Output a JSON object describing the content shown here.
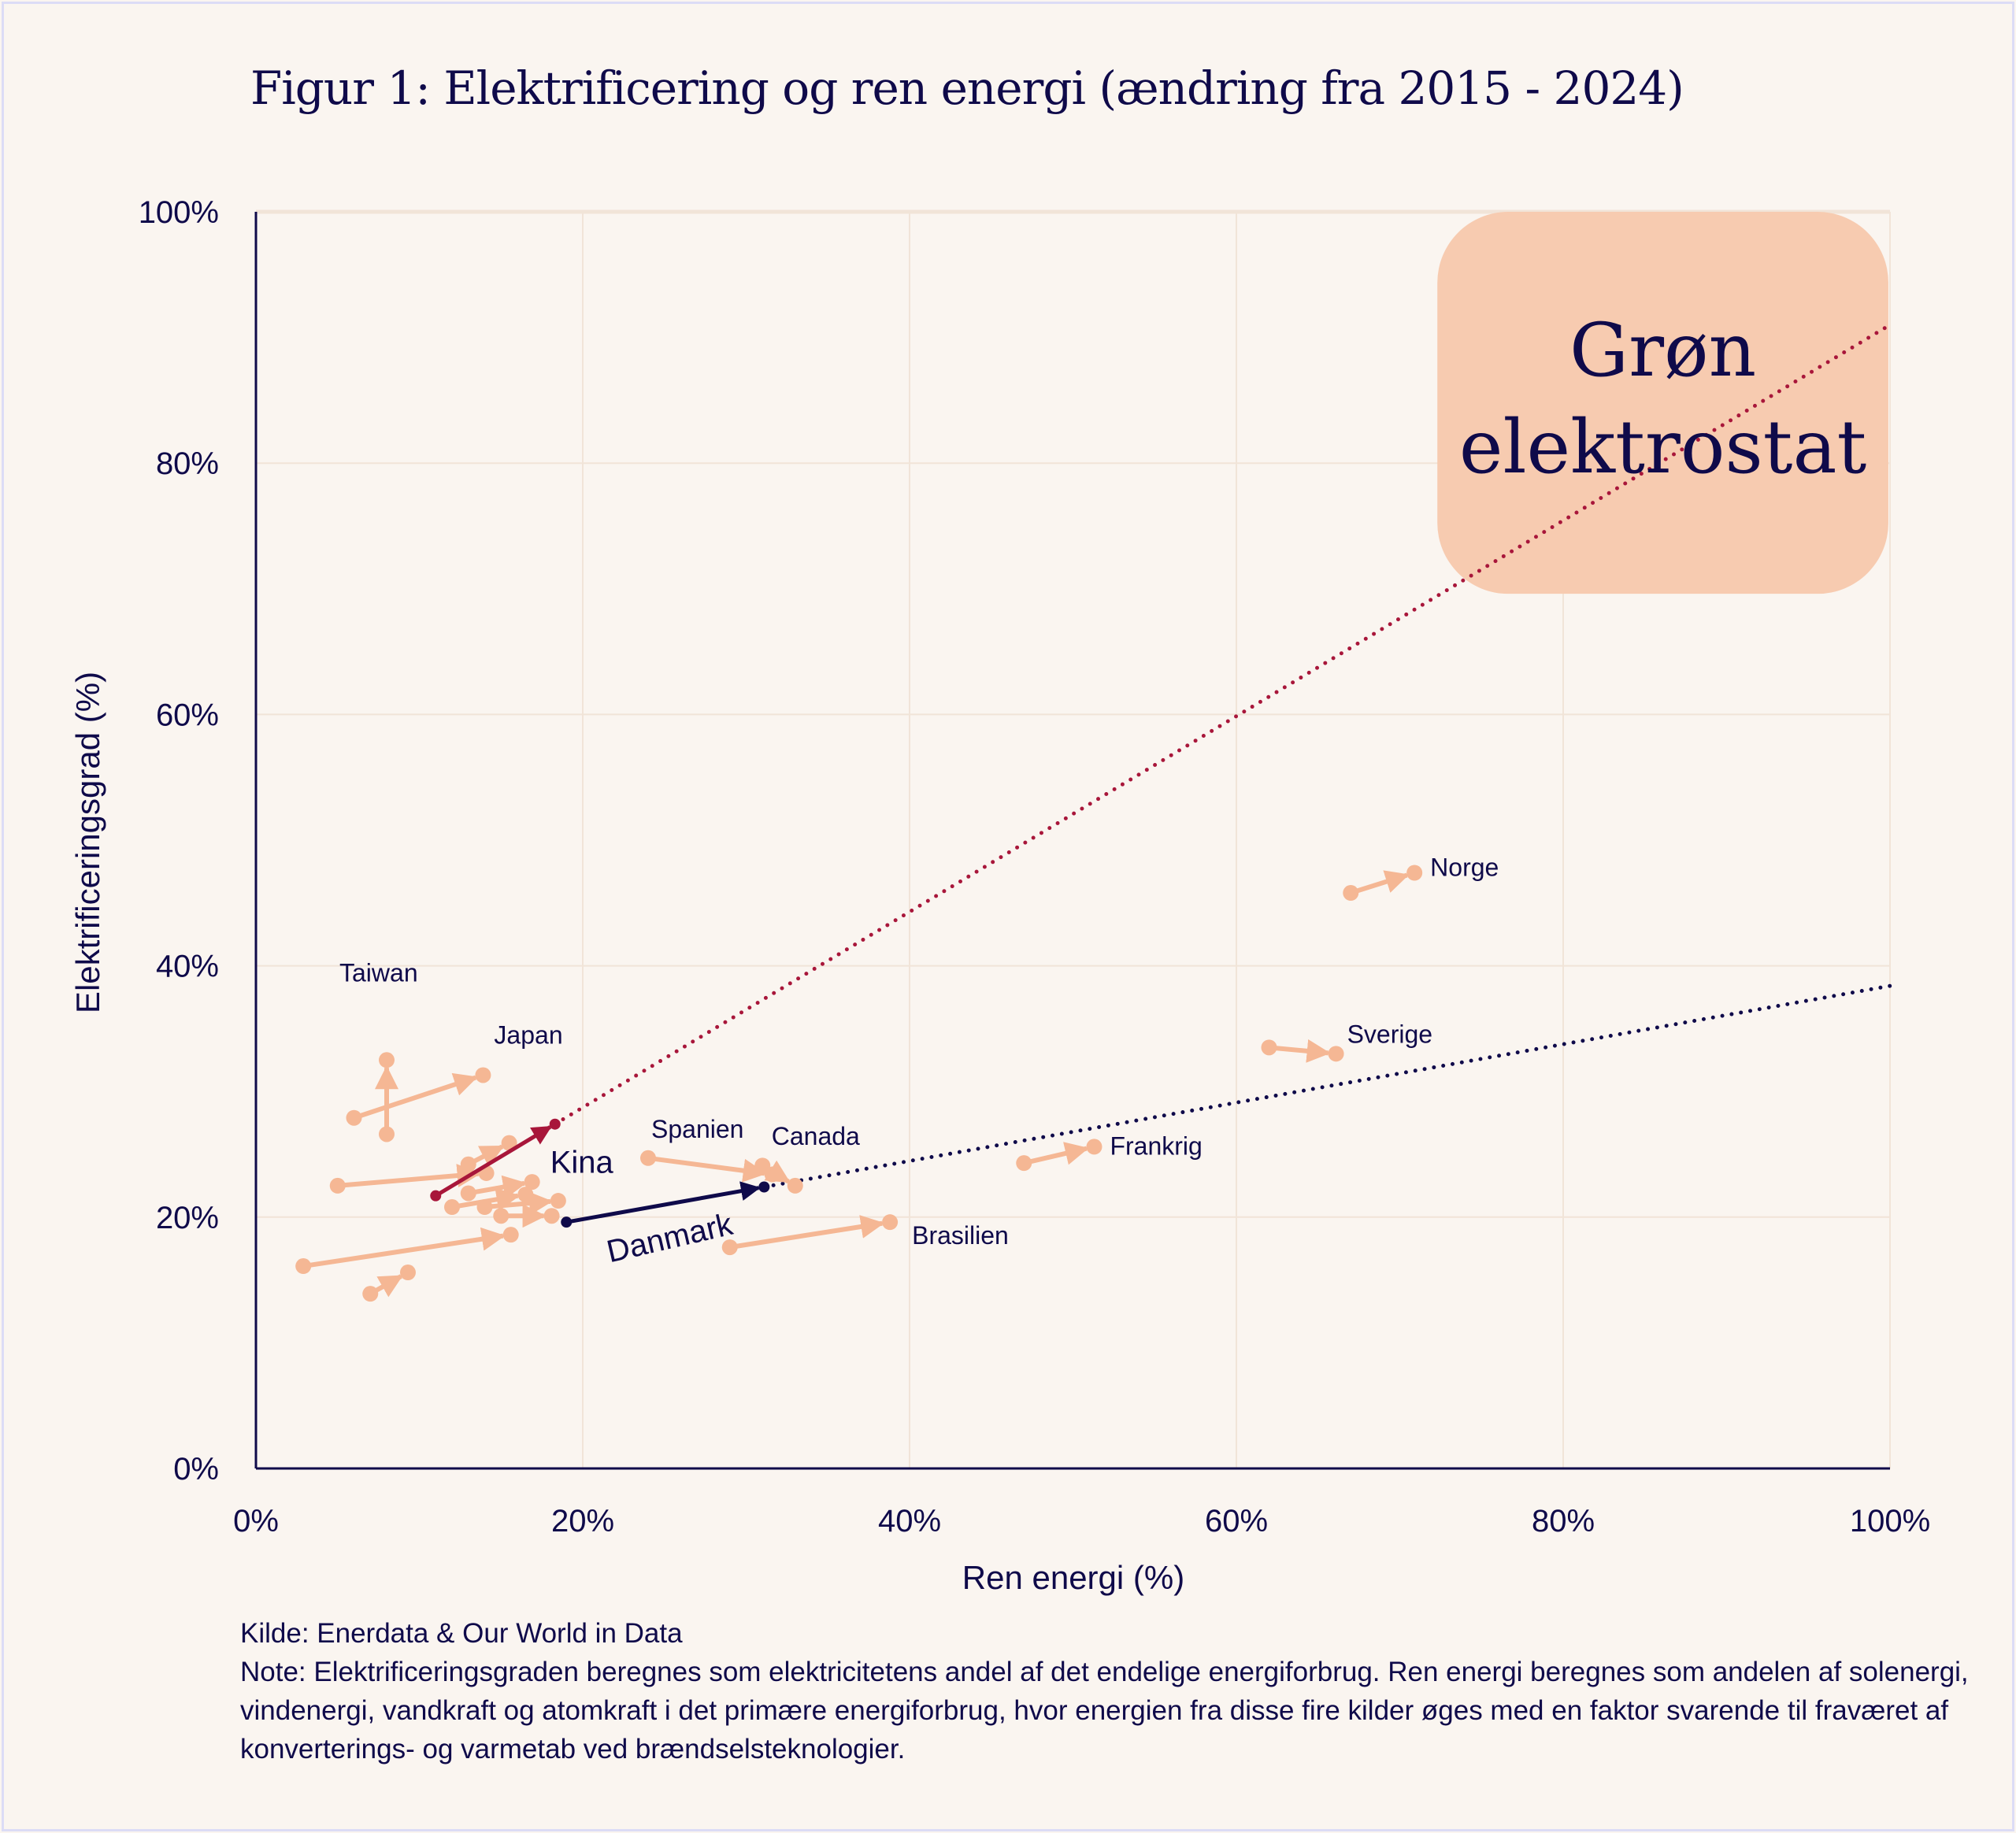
{
  "title": "Figur 1: Elektrificering og ren energi (ændring fra 2015 - 2024)",
  "chart_data": {
    "type": "scatter",
    "subtype": "arrow-scatter (2015 → 2024)",
    "title": "Figur 1: Elektrificering og ren energi (ændring fra 2015 - 2024)",
    "xlabel": "Ren energi (%)",
    "ylabel": "Elektrificeringsgrad (%)",
    "xlim": [
      0,
      100
    ],
    "ylim": [
      0,
      100
    ],
    "xticks": [
      "0%",
      "20%",
      "40%",
      "60%",
      "80%",
      "100%"
    ],
    "yticks": [
      "0%",
      "20%",
      "40%",
      "60%",
      "80%",
      "100%"
    ],
    "grid": true,
    "series": [
      {
        "name": "Taiwan",
        "label": "Taiwan",
        "from": [
          8.0,
          26.6
        ],
        "to": [
          8.0,
          32.5
        ],
        "style": "other"
      },
      {
        "name": "Japan",
        "label": "Japan",
        "from": [
          6.0,
          27.9
        ],
        "to": [
          13.9,
          31.3
        ],
        "style": "other"
      },
      {
        "name": "Spanien",
        "label": "Spanien",
        "from": [
          24.0,
          24.7
        ],
        "to": [
          31.6,
          23.4
        ],
        "style": "other"
      },
      {
        "name": "Canada",
        "label": "Canada",
        "from": [
          31.0,
          24.1
        ],
        "to": [
          33.0,
          22.5
        ],
        "style": "other"
      },
      {
        "name": "Brasilien",
        "label": "Brasilien",
        "from": [
          29.0,
          17.6
        ],
        "to": [
          38.8,
          19.6
        ],
        "style": "other"
      },
      {
        "name": "Frankrig",
        "label": "Frankrig",
        "from": [
          47.0,
          24.3
        ],
        "to": [
          51.3,
          25.6
        ],
        "style": "other"
      },
      {
        "name": "Sverige",
        "label": "Sverige",
        "from": [
          62.0,
          33.5
        ],
        "to": [
          66.1,
          33.0
        ],
        "style": "other"
      },
      {
        "name": "Norge",
        "label": "Norge",
        "from": [
          67.0,
          45.8
        ],
        "to": [
          70.9,
          47.4
        ],
        "style": "other"
      },
      {
        "name": "unlabeled-1",
        "from": [
          5.0,
          22.5
        ],
        "to": [
          14.1,
          23.5
        ],
        "style": "other"
      },
      {
        "name": "unlabeled-2",
        "from": [
          13.0,
          24.2
        ],
        "to": [
          15.5,
          25.9
        ],
        "style": "other"
      },
      {
        "name": "unlabeled-3",
        "from": [
          13.0,
          21.9
        ],
        "to": [
          16.9,
          22.8
        ],
        "style": "other"
      },
      {
        "name": "unlabeled-4",
        "from": [
          12.0,
          20.8
        ],
        "to": [
          16.5,
          21.8
        ],
        "style": "other"
      },
      {
        "name": "unlabeled-5",
        "from": [
          14.0,
          20.8
        ],
        "to": [
          18.5,
          21.3
        ],
        "style": "other"
      },
      {
        "name": "unlabeled-6",
        "from": [
          15.0,
          20.1
        ],
        "to": [
          18.1,
          20.1
        ],
        "style": "other"
      },
      {
        "name": "unlabeled-7",
        "from": [
          2.9,
          16.1
        ],
        "to": [
          15.6,
          18.6
        ],
        "style": "other"
      },
      {
        "name": "unlabeled-8",
        "from": [
          7.0,
          13.9
        ],
        "to": [
          9.3,
          15.6
        ],
        "style": "other"
      },
      {
        "name": "Kina",
        "label": "Kina",
        "from": [
          11.0,
          21.7
        ],
        "to": [
          18.3,
          27.4
        ],
        "style": "kina"
      },
      {
        "name": "Danmark",
        "label": "Danmark",
        "from": [
          19.0,
          19.6
        ],
        "to": [
          31.1,
          22.4
        ],
        "style": "danmark"
      }
    ],
    "trend_lines": [
      {
        "name": "Kina-trend",
        "from": [
          18.3,
          27.4
        ],
        "to": [
          100,
          91.0
        ],
        "style": "kina"
      },
      {
        "name": "Danmark-trend",
        "from": [
          31.1,
          22.4
        ],
        "to": [
          100,
          38.4
        ],
        "style": "danmark"
      }
    ],
    "annotation_box": {
      "lines": [
        "Grøn",
        "elektrostat"
      ],
      "x_range": [
        72.3,
        99.9
      ],
      "y_range": [
        69.6,
        100
      ]
    }
  },
  "colors": {
    "navy": "#0f0a4a",
    "kina": "#a8163a",
    "other": "#f5b794",
    "box": "#f7cbb0",
    "grid": "#f1e4d8",
    "background": "#faf5f0"
  },
  "footer": {
    "source": "Kilde: Enerdata & Our World in Data",
    "note": "Note: Elektrificeringsgraden beregnes som elektricitetens andel af det endelige energiforbrug. Ren energi beregnes som andelen af solenergi, vindenergi, vandkraft og atomkraft i det primære energiforbrug, hvor energien fra disse fire kilder øges med en faktor svarende til fraværet af konverterings- og varmetab ved brændselsteknologier."
  }
}
